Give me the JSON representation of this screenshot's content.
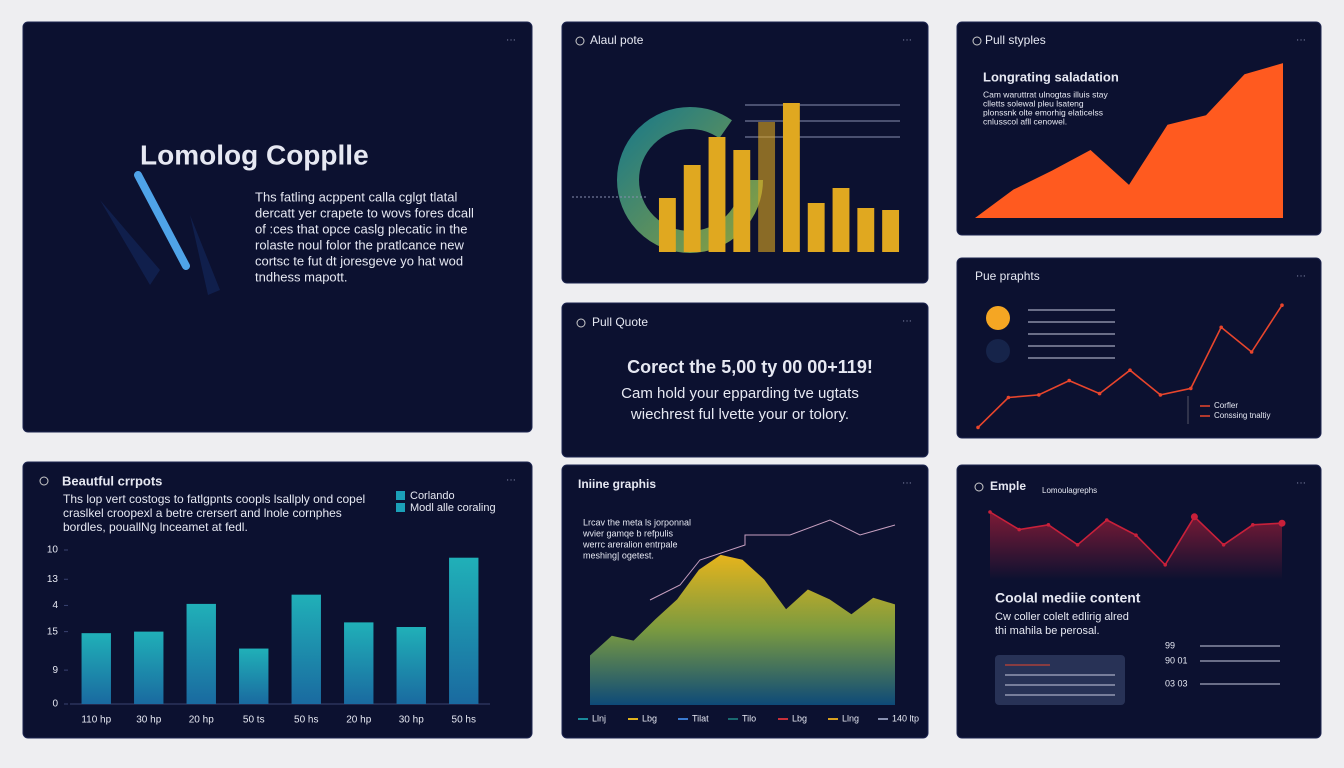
{
  "panels": {
    "hero": {
      "title": "Lomolog Copplle",
      "body": [
        "Ths fatling acppent calla cglgt tlatal",
        "dercatt yer crapete to wovs fores dcall",
        "of :ces that opce caslg plecatic in the",
        "rolaste noul folor the pratlcance new",
        "cortsc te fut dt joresgeve yo hat wod",
        "tndhess mapott."
      ]
    },
    "quote": {
      "title": "Pull Quote",
      "headline": "Corect the 5,00 ty 00 00+119!",
      "body": [
        "Cam hold your epparding tve ugtats",
        "wiechrest ful lvette your or tolory."
      ]
    }
  },
  "chart_data": [
    {
      "type": "bar",
      "title": "Alaul pote",
      "values": [
        54,
        87,
        115,
        102,
        130,
        149,
        49,
        64,
        44,
        42
      ],
      "color": "#e0a820",
      "ylim": [
        0,
        160
      ]
    },
    {
      "type": "area",
      "title": "Pull styples",
      "subtitle": "Longrating saladation",
      "text": [
        "Cam waruttrat ulnogtas illuis stay",
        "clletts solewal pleu lsateng",
        "plonssnk olte emorhig elaticelss",
        "cnlusscol afll cenowel."
      ],
      "values": [
        0,
        18,
        30,
        43,
        21,
        59,
        65,
        91,
        98
      ],
      "color": "#ff5a1f",
      "ylim": [
        0,
        100
      ]
    },
    {
      "type": "line",
      "title": "Pue praphts",
      "legend": [
        "Corfler",
        "Conssing tnaltiy"
      ],
      "values": [
        2,
        25,
        27,
        38,
        28,
        46,
        27,
        32,
        79,
        60,
        96
      ],
      "color": "#e8452c",
      "ylim": [
        0,
        100
      ]
    },
    {
      "type": "bar",
      "title": "Beautful crrpots",
      "text": [
        "Ths lop vert costogs to fatlgpnts coopls lsallply ond copel",
        "craslkel croopexl a betre crersert and lnole cornphes",
        "bordles, pouallNg lnceamet at fedl."
      ],
      "legend": [
        "Corlando",
        "Modl alle coraling"
      ],
      "categories": [
        "110 hp",
        "30 hp",
        "20 hp",
        "50 ts",
        "50 hs",
        "20 hp",
        "30 hp",
        "50 hs"
      ],
      "values": [
        46,
        47,
        65,
        36,
        71,
        53,
        50,
        95
      ],
      "color": "#1ba0b8",
      "ylim": [
        0,
        100
      ],
      "yticks": [
        {
          "value": 100,
          "label": "10"
        },
        {
          "value": 81,
          "label": "13"
        },
        {
          "value": 64,
          "label": "4"
        },
        {
          "value": 47,
          "label": "15"
        },
        {
          "value": 22,
          "label": "9"
        },
        0
      ]
    },
    {
      "type": "area",
      "title": "Iniine graphis",
      "text": [
        "Lrcav the meta ls jorponnal",
        "wvier gamqe b refpulis",
        "werrc areralion entrpale",
        "meshing| ogetest."
      ],
      "legend": [
        "Llnj",
        "Lbg",
        "Tilat",
        "Tilo",
        "Lbg",
        "Llng",
        "140 ltp"
      ],
      "values": [
        30,
        42,
        39,
        52,
        64,
        82,
        91,
        88,
        76,
        58,
        70,
        64,
        55,
        65,
        61
      ],
      "color": "#e0b21e",
      "ylim": [
        0,
        100
      ]
    },
    {
      "type": "line",
      "title": "Emple",
      "subtitle": "Lomoulagrephs",
      "headline": "Coolal mediie content",
      "text": [
        "Cw coller colelt edlirig alred",
        "thi mahila be perosal."
      ],
      "rows": [
        "99",
        "90 01",
        "03 03"
      ],
      "values": [
        85,
        63,
        69,
        44,
        75,
        56,
        19,
        79,
        44,
        69,
        71
      ],
      "color": "#c8203a",
      "ylim": [
        0,
        100
      ]
    }
  ]
}
